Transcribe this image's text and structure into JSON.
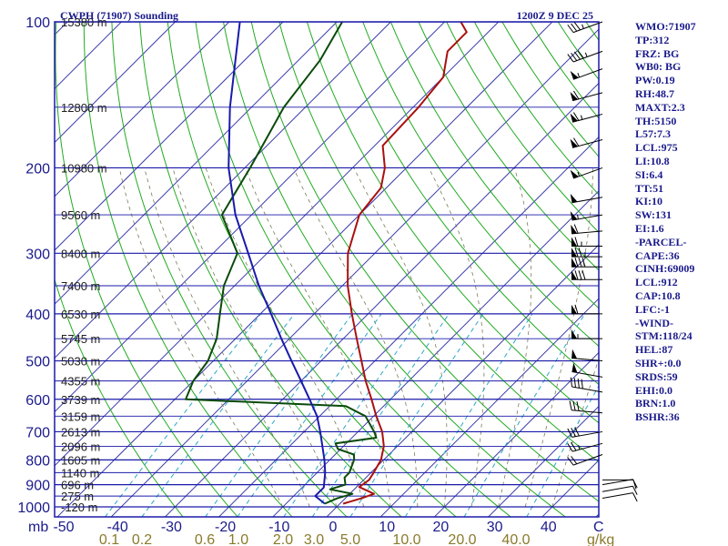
{
  "chart_data": {
    "type": "skew-t log-p sounding",
    "title": "CWPH (71907) Sounding",
    "time_label": "1200Z  9 DEC 25",
    "xlabel": "C",
    "mixing_ratio_unit": "g/kg",
    "pressure_unit": "mb",
    "pressure_levels": [
      100,
      200,
      300,
      400,
      500,
      600,
      700,
      800,
      900,
      1000
    ],
    "pressure_range": [
      100,
      1050
    ],
    "temperature_ticks": [
      -50,
      -40,
      -30,
      -20,
      -10,
      0,
      10,
      20,
      30,
      40
    ],
    "temperature_tick_labels": [
      "-50",
      "-40",
      "-30",
      "-20",
      "-10",
      "0",
      "10",
      "20",
      "30",
      "40"
    ],
    "mixing_ratio_labels": [
      "0.1",
      "0.2",
      "0.6",
      "1.0",
      "2.0",
      "3.0",
      "5.0",
      "10.0",
      "20.0",
      "40.0"
    ],
    "mixing_ratio_values": [
      0.1,
      0.2,
      0.6,
      1.0,
      2.0,
      3.0,
      5.0,
      10.0,
      20.0,
      40.0
    ],
    "height_labels": [
      {
        "p": 100,
        "text": "15380 m"
      },
      {
        "p": 150,
        "text": "12800 m"
      },
      {
        "p": 200,
        "text": "10980 m"
      },
      {
        "p": 250,
        "text": "9560 m"
      },
      {
        "p": 300,
        "text": "8400 m"
      },
      {
        "p": 350,
        "text": "7400 m"
      },
      {
        "p": 400,
        "text": "6530 m"
      },
      {
        "p": 450,
        "text": "5745 m"
      },
      {
        "p": 500,
        "text": "5030 m"
      },
      {
        "p": 550,
        "text": "4355 m"
      },
      {
        "p": 600,
        "text": "3739 m"
      },
      {
        "p": 650,
        "text": "3159 m"
      },
      {
        "p": 700,
        "text": "2613 m"
      },
      {
        "p": 750,
        "text": "2096 m"
      },
      {
        "p": 800,
        "text": "1605 m"
      },
      {
        "p": 850,
        "text": "1140 m"
      },
      {
        "p": 900,
        "text": "696 m"
      },
      {
        "p": 950,
        "text": "275 m"
      },
      {
        "p": 1000,
        "text": "-120 m"
      }
    ],
    "series": [
      {
        "name": "Temperature",
        "color": "#aa1010",
        "points": [
          [
            985,
            0.6
          ],
          [
            960,
            3.0
          ],
          [
            940,
            4.5
          ],
          [
            910,
            0.5
          ],
          [
            880,
            1.0
          ],
          [
            850,
            0.5
          ],
          [
            800,
            -0.5
          ],
          [
            750,
            -2.5
          ],
          [
            700,
            -5.5
          ],
          [
            650,
            -9.5
          ],
          [
            600,
            -13.5
          ],
          [
            550,
            -18.0
          ],
          [
            500,
            -22.5
          ],
          [
            450,
            -27.5
          ],
          [
            400,
            -33.0
          ],
          [
            350,
            -39.0
          ],
          [
            300,
            -45.0
          ],
          [
            250,
            -50.0
          ],
          [
            220,
            -51.0
          ],
          [
            200,
            -54.0
          ],
          [
            180,
            -58.5
          ],
          [
            150,
            -59.0
          ],
          [
            130,
            -60.0
          ],
          [
            115,
            -64.0
          ],
          [
            105,
            -64.0
          ],
          [
            100,
            -67.0
          ]
        ]
      },
      {
        "name": "Dewpoint",
        "color": "#0a4a0a",
        "points": [
          [
            985,
            -2.8
          ],
          [
            960,
            -1.5
          ],
          [
            940,
            0.5
          ],
          [
            920,
            -4.5
          ],
          [
            900,
            -2.5
          ],
          [
            870,
            -4.0
          ],
          [
            850,
            -4.0
          ],
          [
            800,
            -5.5
          ],
          [
            780,
            -6.5
          ],
          [
            760,
            -10.5
          ],
          [
            740,
            -12.0
          ],
          [
            720,
            -5.5
          ],
          [
            700,
            -7.0
          ],
          [
            650,
            -11.5
          ],
          [
            620,
            -17.0
          ],
          [
            600,
            -48.0
          ],
          [
            550,
            -50.0
          ],
          [
            500,
            -51.0
          ],
          [
            450,
            -53.5
          ],
          [
            400,
            -57.5
          ],
          [
            350,
            -62.0
          ],
          [
            300,
            -65.5
          ],
          [
            250,
            -75.5
          ],
          [
            200,
            -79.0
          ],
          [
            150,
            -84.0
          ],
          [
            120,
            -86.0
          ],
          [
            100,
            -89.0
          ]
        ]
      },
      {
        "name": "Parcel",
        "color": "#1a1aaa",
        "points": [
          [
            985,
            -2.8
          ],
          [
            950,
            -6.0
          ],
          [
            912,
            -6.0
          ],
          [
            850,
            -8.5
          ],
          [
            800,
            -11.0
          ],
          [
            700,
            -17.0
          ],
          [
            650,
            -20.5
          ],
          [
            600,
            -25.0
          ],
          [
            550,
            -30.0
          ],
          [
            500,
            -35.5
          ],
          [
            450,
            -41.5
          ],
          [
            400,
            -48.0
          ],
          [
            350,
            -55.5
          ],
          [
            300,
            -63.5
          ],
          [
            250,
            -73.0
          ],
          [
            200,
            -83.0
          ],
          [
            150,
            -94.0
          ],
          [
            100,
            -108.0
          ]
        ]
      }
    ],
    "wind_barbs": [
      {
        "p": 100,
        "dir": 250,
        "spd": 35
      },
      {
        "p": 115,
        "dir": 250,
        "spd": 45
      },
      {
        "p": 125,
        "dir": 250,
        "spd": 55
      },
      {
        "p": 140,
        "dir": 255,
        "spd": 60
      },
      {
        "p": 155,
        "dir": 255,
        "spd": 65
      },
      {
        "p": 175,
        "dir": 255,
        "spd": 60
      },
      {
        "p": 200,
        "dir": 250,
        "spd": 55
      },
      {
        "p": 230,
        "dir": 260,
        "spd": 50
      },
      {
        "p": 250,
        "dir": 260,
        "spd": 55
      },
      {
        "p": 270,
        "dir": 265,
        "spd": 60
      },
      {
        "p": 290,
        "dir": 270,
        "spd": 65
      },
      {
        "p": 305,
        "dir": 270,
        "spd": 75
      },
      {
        "p": 320,
        "dir": 270,
        "spd": 80
      },
      {
        "p": 340,
        "dir": 270,
        "spd": 80
      },
      {
        "p": 400,
        "dir": 270,
        "spd": 60
      },
      {
        "p": 450,
        "dir": 270,
        "spd": 55
      },
      {
        "p": 500,
        "dir": 275,
        "spd": 50
      },
      {
        "p": 540,
        "dir": 280,
        "spd": 50
      },
      {
        "p": 580,
        "dir": 280,
        "spd": 40
      },
      {
        "p": 640,
        "dir": 275,
        "spd": 30
      },
      {
        "p": 700,
        "dir": 260,
        "spd": 30
      },
      {
        "p": 740,
        "dir": 255,
        "spd": 25
      },
      {
        "p": 780,
        "dir": 250,
        "spd": 20
      },
      {
        "p": 880,
        "dir": 90,
        "spd": 10
      },
      {
        "p": 900,
        "dir": 80,
        "spd": 10
      },
      {
        "p": 930,
        "dir": 80,
        "spd": 10
      },
      {
        "p": 960,
        "dir": 80,
        "spd": 10
      }
    ],
    "colors": {
      "isobar": "#1a1aaa",
      "isotherm": "#3a3aaa",
      "dry_adiabat": "#22aa22",
      "moist_adiabat": "#7a7a5a",
      "mixing_ratio": "#2aa8c8",
      "panel_text": "#1a1a8c"
    }
  },
  "indices": [
    "WMO:71907",
    "TP:312",
    "FRZ: BG",
    "WB0: BG",
    "PW:0.19",
    "RH:48.7",
    "MAXT:2.3",
    "TH:5150",
    "L57:7.3",
    "LCL:975",
    "LI:10.8",
    "SI:6.4",
    "TT:51",
    "KI:10",
    "SW:131",
    "EI:1.6",
    "-PARCEL-",
    "CAPE:36",
    "CINH:69009",
    "LCL:912",
    "CAP:10.8",
    "LFC:-1",
    "-WIND-",
    "STM:118/24",
    "HEL:87",
    "SHR+:0.0",
    "SRDS:59",
    "EHI:0.0",
    "BRN:1.0",
    "BSHR:36"
  ]
}
